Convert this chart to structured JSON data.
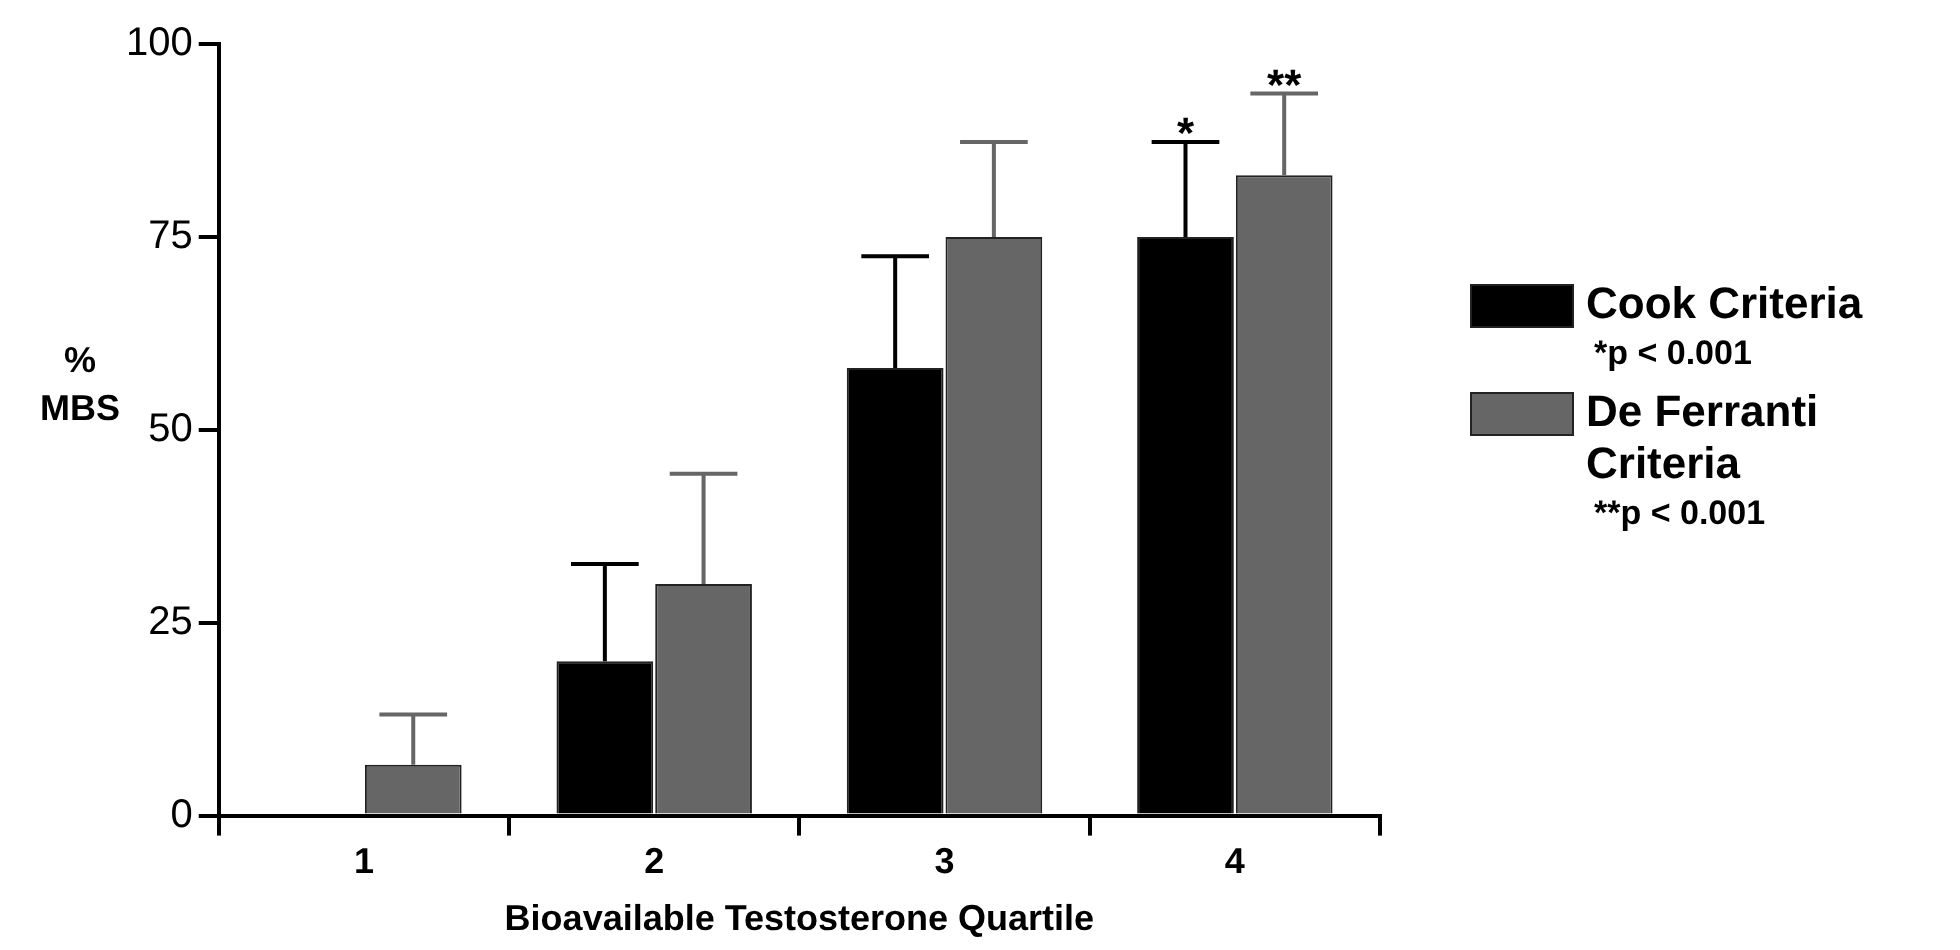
{
  "chart_data": {
    "type": "bar",
    "xlabel": "Bioavailable Testosterone Quartile",
    "ylabel": "% MBS",
    "categories": [
      "1",
      "2",
      "3",
      "4"
    ],
    "series": [
      {
        "name": "Cook Criteria",
        "color": "#000000",
        "values": [
          0,
          20,
          58,
          75
        ],
        "errors": [
          null,
          [
            20,
            32.6
          ],
          [
            58,
            72.5
          ],
          [
            75,
            87.3
          ]
        ]
      },
      {
        "name": "De Ferranti Criteria",
        "color": "#666666",
        "values": [
          6.6,
          30,
          75,
          83
        ],
        "errors": [
          [
            6.6,
            13.1
          ],
          [
            30,
            44.3
          ],
          [
            75,
            87.3
          ],
          [
            83,
            93.6
          ]
        ]
      }
    ],
    "ylim": [
      0,
      100
    ],
    "yticks": [
      0,
      25,
      50,
      75,
      100
    ],
    "grid": false,
    "legend": "right",
    "annotations": [
      "*",
      "**",
      "*p < 0.001",
      "**p < 0.001"
    ]
  }
}
